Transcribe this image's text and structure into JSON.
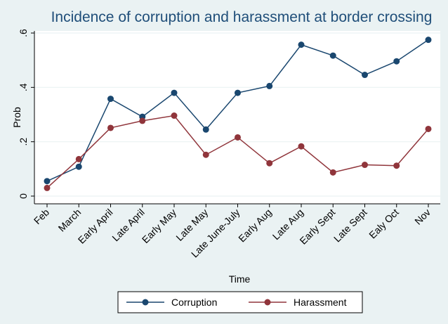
{
  "chart_data": {
    "type": "line",
    "title": "Incidence of corruption and harassment at border crossing",
    "xlabel": "Time",
    "ylabel": "Prob",
    "ylim": [
      0,
      0.6
    ],
    "yticks": [
      0,
      0.2,
      0.4,
      0.6
    ],
    "ytick_labels": [
      "0",
      ".2",
      ".4",
      ".6"
    ],
    "categories": [
      "Feb",
      "March",
      "Early April",
      "Late April",
      "Early May",
      "Late May",
      "Late June-July",
      "Early Aug",
      "Late Aug",
      "Early Sept",
      "Late Sept",
      "Ealy Oct",
      "Nov"
    ],
    "series": [
      {
        "name": "Corruption",
        "color": "#1a476f",
        "values": [
          0.055,
          0.108,
          0.358,
          0.292,
          0.38,
          0.245,
          0.38,
          0.405,
          0.557,
          0.517,
          0.446,
          0.496,
          0.575
        ]
      },
      {
        "name": "Harassment",
        "color": "#90353b",
        "values": [
          0.03,
          0.136,
          0.251,
          0.277,
          0.296,
          0.152,
          0.216,
          0.121,
          0.183,
          0.087,
          0.115,
          0.112,
          0.247
        ]
      }
    ],
    "grid": true,
    "legend": "bottom"
  }
}
